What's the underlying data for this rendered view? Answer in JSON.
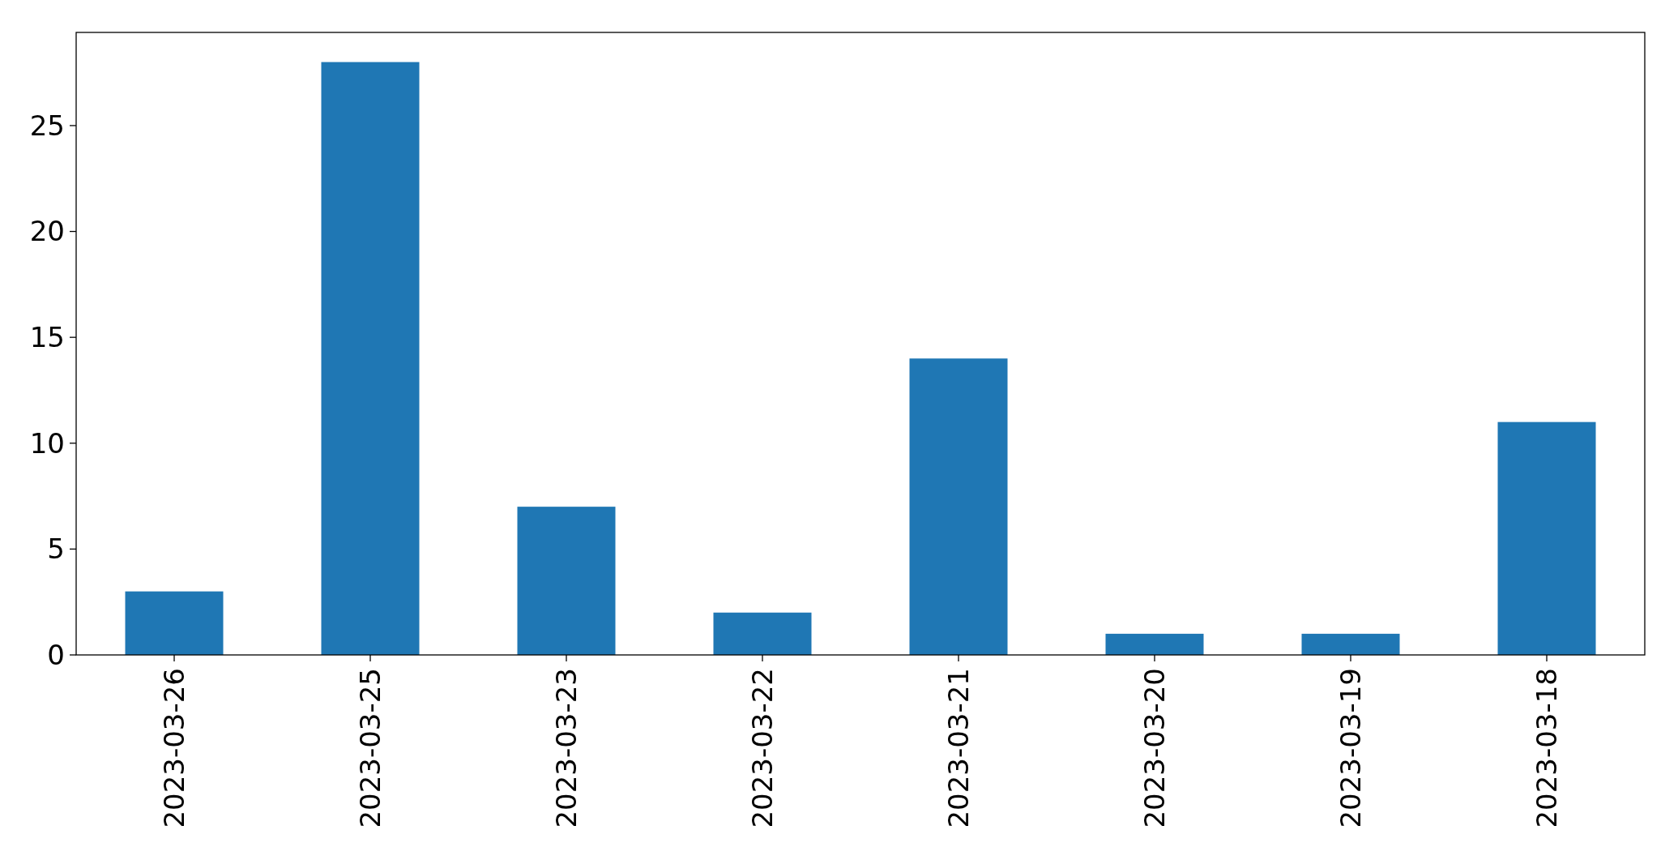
{
  "chart_data": {
    "type": "bar",
    "categories": [
      "2023-03-26",
      "2023-03-25",
      "2023-03-23",
      "2023-03-22",
      "2023-03-21",
      "2023-03-20",
      "2023-03-19",
      "2023-03-18"
    ],
    "values": [
      3,
      28,
      7,
      2,
      14,
      1,
      1,
      11
    ],
    "color": "#1f77b4",
    "ylim": [
      0,
      29.4
    ],
    "yticks": [
      0,
      5,
      10,
      15,
      20,
      25
    ]
  }
}
